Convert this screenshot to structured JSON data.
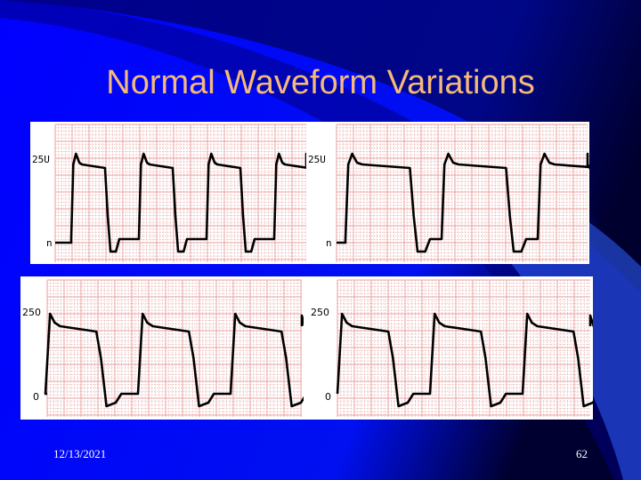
{
  "slide": {
    "title": "Normal Waveform Variations",
    "date": "12/13/2021",
    "page_number": "62"
  },
  "colors": {
    "background": "#0000ff",
    "title": "#f5b97a",
    "grid": "#e8a0a0",
    "waveform": "#000000"
  },
  "chart_data": [
    {
      "type": "line",
      "yticks": [
        "25U",
        "n"
      ],
      "ylim": [
        0,
        250
      ],
      "waveform": "square-plateau",
      "cycles": 4
    },
    {
      "type": "line",
      "yticks": [
        "25U",
        "n"
      ],
      "ylim": [
        0,
        250
      ],
      "waveform": "square-plateau-wide",
      "cycles": 3
    },
    {
      "type": "line",
      "yticks": [
        "250",
        "0"
      ],
      "ylim": [
        0,
        250
      ],
      "waveform": "peak-plateau",
      "cycles": 3
    },
    {
      "type": "line",
      "yticks": [
        "250",
        "0"
      ],
      "ylim": [
        0,
        250
      ],
      "waveform": "peak-plateau",
      "cycles": 3
    }
  ]
}
